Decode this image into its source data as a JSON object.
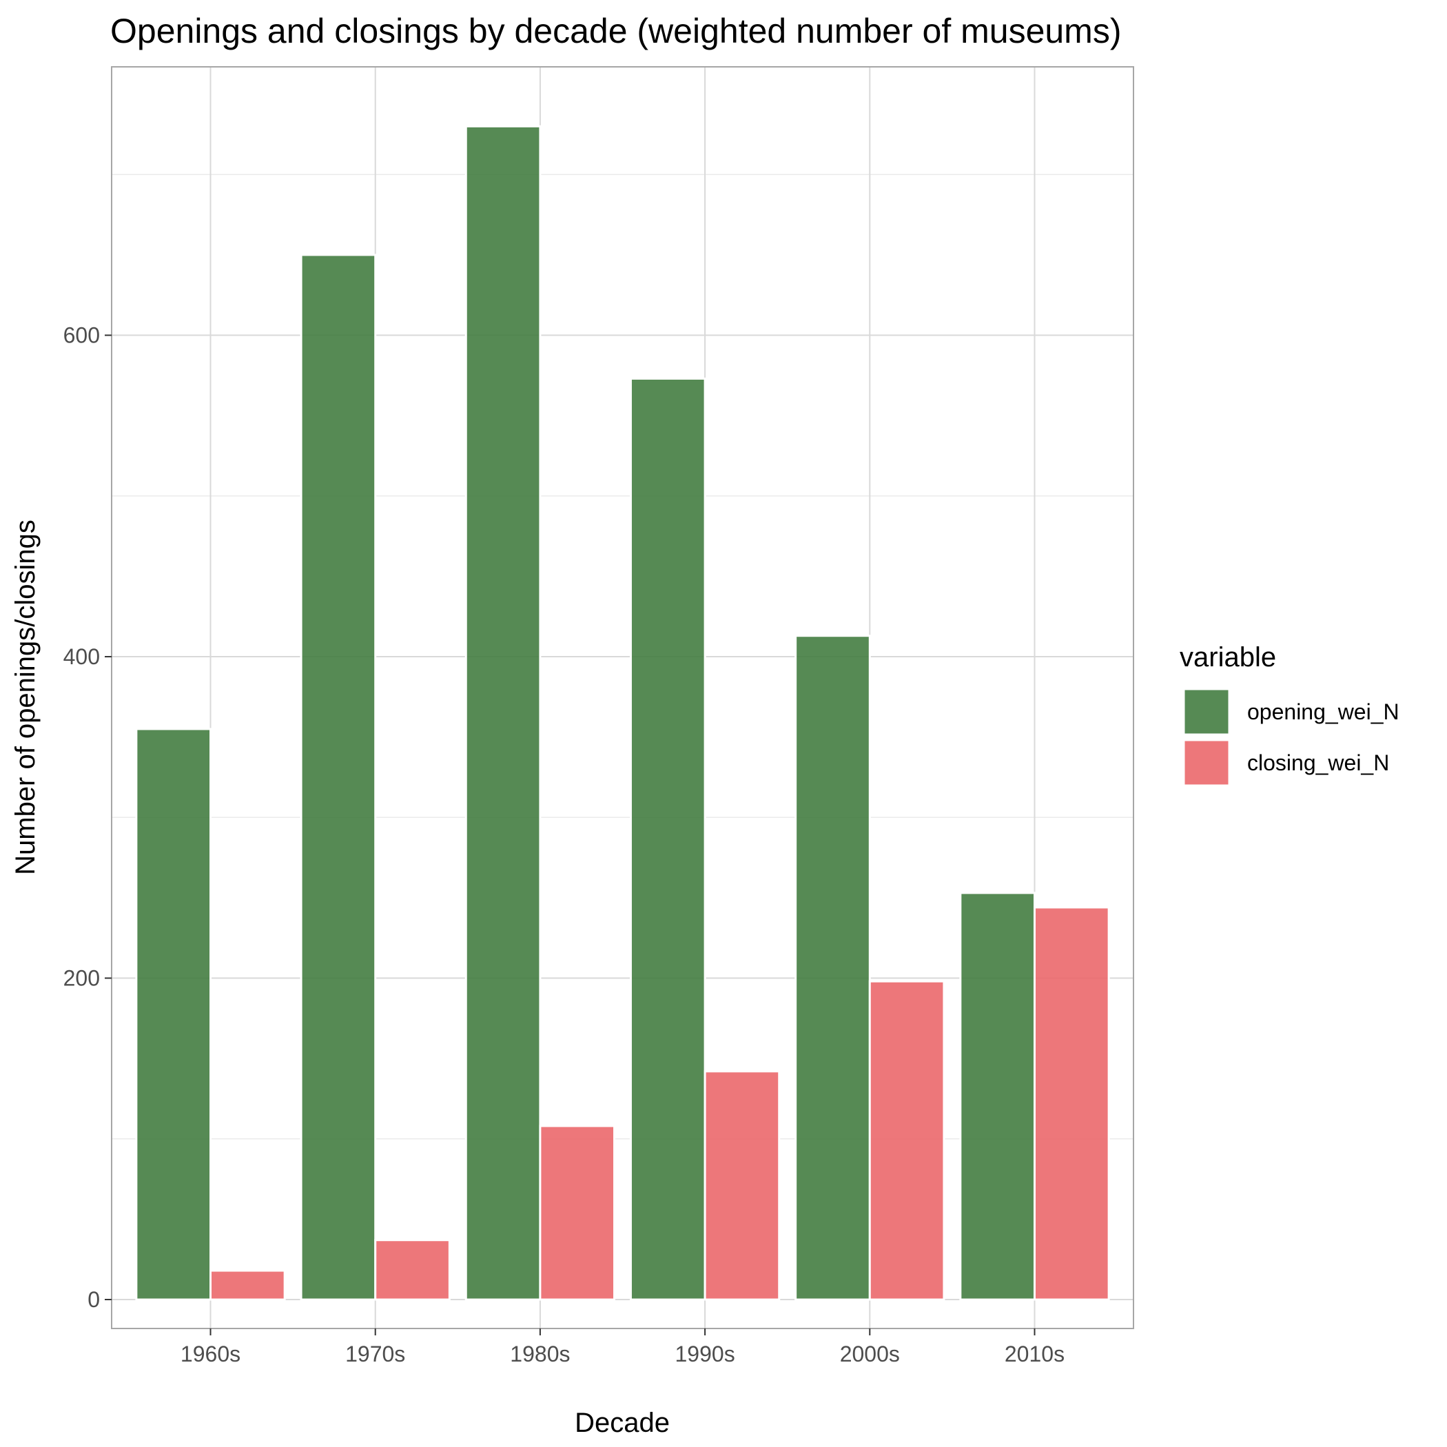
{
  "chart_data": {
    "type": "bar",
    "title": "Openings and closings by decade (weighted number of museums)",
    "xlabel": "Decade",
    "ylabel": "Number of openings/closings",
    "categories": [
      "1960s",
      "1970s",
      "1980s",
      "1990s",
      "2000s",
      "2010s"
    ],
    "series": [
      {
        "name": "opening_wei_N",
        "color": "#3f7a3c",
        "values": [
          355,
          650,
          730,
          573,
          413,
          253
        ]
      },
      {
        "name": "closing_wei_N",
        "color": "#eb6468",
        "values": [
          18,
          37,
          108,
          142,
          198,
          244
        ]
      }
    ],
    "ylim": [
      -18,
      767
    ],
    "yticks": [
      0,
      200,
      400,
      600
    ],
    "grid": true,
    "legend": {
      "title": "variable",
      "position": "right"
    }
  }
}
